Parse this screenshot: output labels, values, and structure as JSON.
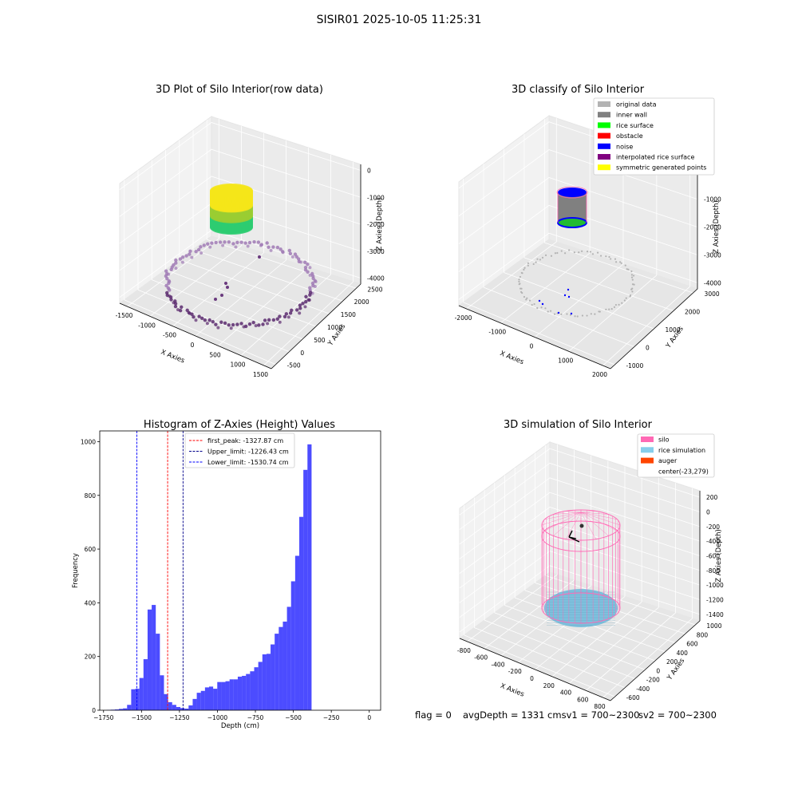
{
  "suptitle": "SISIR01 2025-10-05 11:25:31",
  "panels": {
    "raw": {
      "title": "3D Plot of Silo Interior(row data)",
      "xlabel": "X Axies",
      "ylabel": "Y Axies",
      "zlabel": "Z Axies (Depth)",
      "xticks": [
        "-1500",
        "-1000",
        "-500",
        "0",
        "500",
        "1000",
        "1500"
      ],
      "yticks": [
        "-500",
        "0",
        "500",
        "1000",
        "1500",
        "2000",
        "2500"
      ],
      "zticks": [
        "0",
        "-1000",
        "-2000",
        "-3000",
        "-4000"
      ]
    },
    "classify": {
      "title": "3D classify of Silo Interior",
      "xlabel": "X Axies",
      "ylabel": "Y Axies",
      "zlabel": "Z Axies (Depth)",
      "xticks": [
        "-2000",
        "-1000",
        "0",
        "1000",
        "2000"
      ],
      "yticks": [
        "-1000",
        "0",
        "1000",
        "2000",
        "3000"
      ],
      "zticks": [
        "0",
        "-1000",
        "-2000",
        "-3000",
        "-4000"
      ],
      "legend": [
        {
          "label": "original data",
          "color": "#b3b3b3"
        },
        {
          "label": "inner wall",
          "color": "#808080"
        },
        {
          "label": "rice surface",
          "color": "#00ff00"
        },
        {
          "label": "obstacle",
          "color": "#ff0000"
        },
        {
          "label": "noise",
          "color": "#0000ff"
        },
        {
          "label": "interpolated rice surface",
          "color": "#800080"
        },
        {
          "label": "symmetric generated points",
          "color": "#ffff00"
        }
      ]
    },
    "sim": {
      "title": "3D simulation of Silo Interior",
      "xlabel": "X Axies",
      "ylabel": "Y Axies",
      "zlabel": "Z Axies (Depth)",
      "xticks": [
        "-800",
        "-600",
        "-400",
        "-200",
        "0",
        "200",
        "400",
        "600",
        "800"
      ],
      "yticks": [
        "-600",
        "-400",
        "-200",
        "0",
        "200",
        "400",
        "600",
        "800",
        "1000"
      ],
      "zticks": [
        "200",
        "0",
        "-200",
        "-400",
        "-600",
        "-800",
        "-1000",
        "-1200",
        "-1400"
      ],
      "legend": [
        {
          "label": "silo",
          "color": "#ff69b4"
        },
        {
          "label": "rice simulation",
          "color": "#87ceeb"
        },
        {
          "label": "auger",
          "color": "#ff4500"
        },
        {
          "label": "center(-23,279)",
          "color": ""
        }
      ]
    }
  },
  "status": {
    "flag": "flag = 0",
    "avg_depth": "avgDepth = 1331 cmsv1 = 700~2300",
    "sv2": "sv2 = 700~2300"
  },
  "chart_data": [
    {
      "type": "scatter",
      "title": "3D Plot of Silo Interior(row data)",
      "xlabel": "X Axies",
      "ylabel": "Y Axies",
      "zlabel": "Z Axies (Depth)",
      "xlim": [
        -1750,
        1750
      ],
      "ylim": [
        -750,
        2750
      ],
      "zlim": [
        -4500,
        200
      ],
      "grid": true
    },
    {
      "type": "scatter",
      "title": "3D classify of Silo Interior",
      "xlabel": "X Axies",
      "ylabel": "Y Axies",
      "zlabel": "Z Axies (Depth)",
      "xlim": [
        -2300,
        2300
      ],
      "ylim": [
        -1300,
        3300
      ],
      "zlim": [
        -4500,
        200
      ],
      "legend": [
        "original data",
        "inner wall",
        "rice surface",
        "obstacle",
        "noise",
        "interpolated rice surface",
        "symmetric generated points"
      ],
      "legend_loc": "upper right",
      "grid": true
    },
    {
      "type": "bar",
      "title": "Histogram of Z-Axies (Height) Values",
      "xlabel": "Depth (cm)",
      "ylabel": "Frequency",
      "xlim": [
        -1775,
        75
      ],
      "ylim": [
        0,
        1040
      ],
      "xticks": [
        -1750,
        -1500,
        -1250,
        -1000,
        -750,
        -500,
        -250,
        0
      ],
      "yticks": [
        0,
        200,
        400,
        600,
        800,
        1000
      ],
      "bin_width": 27,
      "bin_start": -1730,
      "values": [
        1,
        2,
        3,
        5,
        7,
        20,
        78,
        80,
        120,
        190,
        375,
        392,
        285,
        130,
        60,
        30,
        20,
        12,
        8,
        6,
        18,
        42,
        65,
        72,
        85,
        88,
        80,
        105,
        105,
        108,
        115,
        115,
        125,
        128,
        135,
        145,
        160,
        180,
        208,
        210,
        245,
        285,
        310,
        330,
        385,
        480,
        575,
        720,
        895,
        990
      ],
      "color": "#0000ff",
      "vlines": [
        {
          "label": "first_peak: -1327.87 cm",
          "x": -1327.87,
          "color": "#ff0000"
        },
        {
          "label": "Upper_limit: -1226.43 cm",
          "x": -1226.43,
          "color": "#00008b"
        },
        {
          "label": "Lower_limit: -1530.74 cm",
          "x": -1530.74,
          "color": "#0000ff"
        }
      ],
      "legend_loc": "upper center"
    },
    {
      "type": "scatter",
      "title": "3D simulation of Silo Interior",
      "xlabel": "X Axies",
      "ylabel": "Y Axies",
      "zlabel": "Z Axies (Depth)",
      "xlim": [
        -900,
        900
      ],
      "ylim": [
        -700,
        1100
      ],
      "zlim": [
        -1500,
        300
      ],
      "legend": [
        "silo",
        "rice simulation",
        "auger",
        "center(-23,279)"
      ],
      "legend_loc": "upper right",
      "grid": true
    }
  ]
}
